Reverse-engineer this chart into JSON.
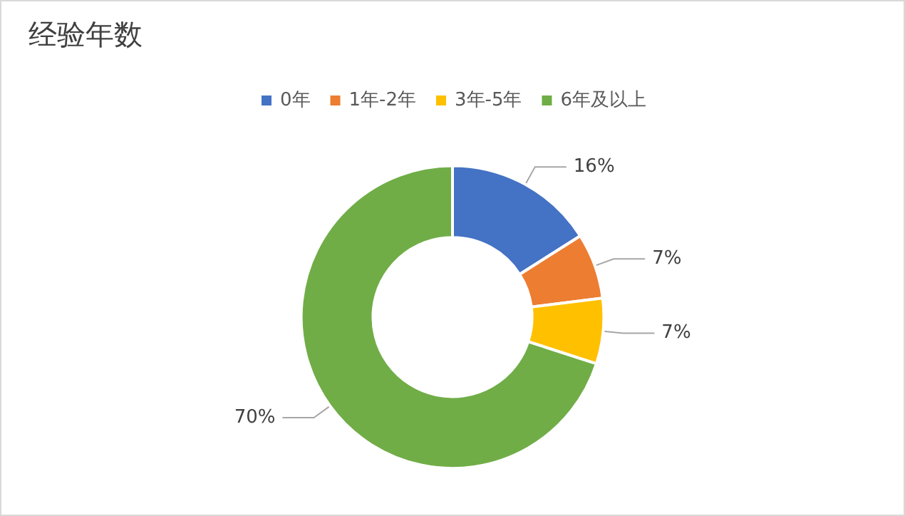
{
  "chart_data": {
    "type": "donut",
    "title": "经验年数",
    "categories": [
      "0年",
      "1年-2年",
      "3年-5年",
      "6年及以上"
    ],
    "values": [
      16,
      7,
      7,
      70
    ],
    "colors": [
      "#4472c4",
      "#ed7d31",
      "#ffc000",
      "#70ad47"
    ],
    "value_labels": [
      "16%",
      "7%",
      "7%",
      "70%"
    ],
    "legend": "top"
  }
}
